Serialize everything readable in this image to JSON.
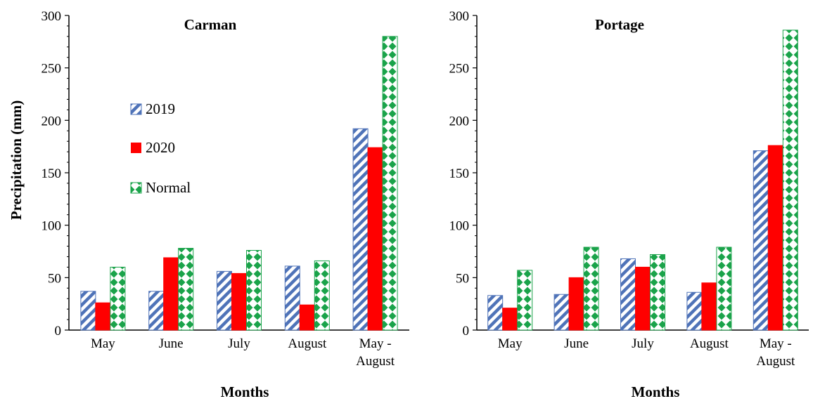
{
  "chart_data": [
    {
      "type": "bar",
      "title": "Carman",
      "xlabel": "Months",
      "ylabel": "Precipitation (mm)",
      "ylim": [
        0,
        300
      ],
      "yticks": [
        0,
        50,
        100,
        150,
        200,
        250,
        300
      ],
      "categories": [
        [
          "May"
        ],
        [
          "June"
        ],
        [
          "July"
        ],
        [
          "August"
        ],
        [
          "May -",
          "August"
        ]
      ],
      "series": [
        {
          "name": "2019",
          "values": [
            37,
            37,
            56,
            61,
            192
          ]
        },
        {
          "name": "2020",
          "values": [
            26,
            69,
            54,
            24,
            174
          ]
        },
        {
          "name": "Normal",
          "values": [
            60,
            78,
            76,
            66,
            280
          ]
        }
      ],
      "legend": "upper-left, inside plot"
    },
    {
      "type": "bar",
      "title": "Portage",
      "xlabel": "Months",
      "ylabel": "",
      "ylim": [
        0,
        300
      ],
      "yticks": [
        0,
        50,
        100,
        150,
        200,
        250,
        300
      ],
      "categories": [
        [
          "May"
        ],
        [
          "June"
        ],
        [
          "July"
        ],
        [
          "August"
        ],
        [
          "May -",
          "August"
        ]
      ],
      "series": [
        {
          "name": "2019",
          "values": [
            33,
            34,
            68,
            36,
            171
          ]
        },
        {
          "name": "2020",
          "values": [
            21,
            50,
            60,
            45,
            176
          ]
        },
        {
          "name": "Normal",
          "values": [
            57,
            79,
            72,
            79,
            286
          ]
        }
      ]
    }
  ],
  "colors": {
    "s2019": "#4f73b8",
    "s2020": "#ff0000",
    "normal": "#1aa34a"
  }
}
